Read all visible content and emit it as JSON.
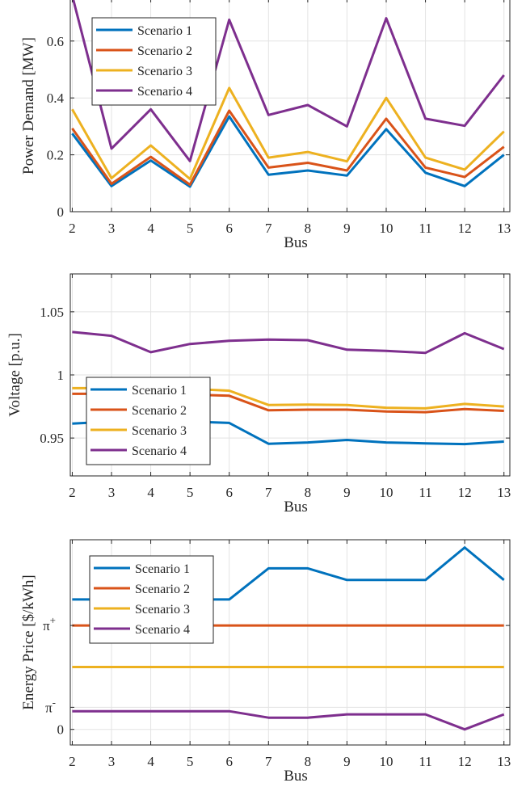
{
  "chart_data": [
    {
      "type": "line",
      "ylabel": "Power Demand [MW]",
      "xlabel": "Bus",
      "x": [
        2,
        3,
        4,
        5,
        6,
        7,
        8,
        9,
        10,
        11,
        12,
        13
      ],
      "xlim": [
        1.95,
        13.15
      ],
      "ylim": [
        0,
        0.75
      ],
      "yticks": [
        {
          "value": 0,
          "label": "0"
        },
        {
          "value": 0.2,
          "label": "0.2"
        },
        {
          "value": 0.4,
          "label": "0.4"
        },
        {
          "value": 0.6,
          "label": "0.6"
        }
      ],
      "grid": true,
      "legend_position": "top-left",
      "series": [
        {
          "name": "Scenario 1",
          "color": "#0072BD",
          "values": [
            0.275,
            0.09,
            0.18,
            0.088,
            0.335,
            0.13,
            0.145,
            0.127,
            0.29,
            0.137,
            0.09,
            0.2
          ]
        },
        {
          "name": "Scenario 2",
          "color": "#D95319",
          "values": [
            0.293,
            0.098,
            0.193,
            0.095,
            0.355,
            0.155,
            0.172,
            0.145,
            0.327,
            0.155,
            0.122,
            0.228
          ]
        },
        {
          "name": "Scenario 3",
          "color": "#EDB120",
          "values": [
            0.36,
            0.118,
            0.233,
            0.115,
            0.435,
            0.19,
            0.21,
            0.177,
            0.4,
            0.19,
            0.148,
            0.282
          ]
        },
        {
          "name": "Scenario 4",
          "color": "#7E2F8E",
          "values": [
            0.76,
            0.222,
            0.36,
            0.178,
            0.675,
            0.34,
            0.375,
            0.3,
            0.68,
            0.327,
            0.302,
            0.48
          ]
        }
      ]
    },
    {
      "type": "line",
      "ylabel": "Voltage [p.u.]",
      "xlabel": "Bus",
      "x": [
        2,
        3,
        4,
        5,
        6,
        7,
        8,
        9,
        10,
        11,
        12,
        13
      ],
      "xlim": [
        1.95,
        13.15
      ],
      "ylim": [
        0.92,
        1.08
      ],
      "yticks": [
        {
          "value": 0.95,
          "label": "0.95"
        },
        {
          "value": 1.0,
          "label": "1"
        },
        {
          "value": 1.05,
          "label": "1.05"
        }
      ],
      "grid": true,
      "legend_position": "bottom-left",
      "series": [
        {
          "name": "Scenario 1",
          "color": "#0072BD",
          "values": [
            0.9615,
            0.963,
            0.9625,
            0.963,
            0.962,
            0.9455,
            0.9465,
            0.9485,
            0.9465,
            0.9458,
            0.9452,
            0.9472
          ]
        },
        {
          "name": "Scenario 2",
          "color": "#D95319",
          "values": [
            0.985,
            0.985,
            0.984,
            0.9845,
            0.9835,
            0.972,
            0.9725,
            0.9725,
            0.971,
            0.9705,
            0.973,
            0.9715
          ]
        },
        {
          "name": "Scenario 3",
          "color": "#EDB120",
          "values": [
            0.9895,
            0.9895,
            0.9885,
            0.989,
            0.9875,
            0.9762,
            0.9765,
            0.9762,
            0.974,
            0.9735,
            0.977,
            0.975
          ]
        },
        {
          "name": "Scenario 4",
          "color": "#7E2F8E",
          "values": [
            1.034,
            1.031,
            1.018,
            1.0245,
            1.027,
            1.028,
            1.0275,
            1.02,
            1.019,
            1.0175,
            1.033,
            1.0205
          ]
        }
      ]
    },
    {
      "type": "line",
      "ylabel": "Energy Price [$/kWh]",
      "xlabel": "Bus",
      "x": [
        2,
        3,
        4,
        5,
        6,
        7,
        8,
        9,
        10,
        11,
        12,
        13
      ],
      "xlim": [
        1.95,
        13.15
      ],
      "ylim": [
        -0.6,
        7.3
      ],
      "yticks": [
        {
          "value": 0,
          "label": "0"
        },
        {
          "value": 0.85,
          "label": "π",
          "sup": "-"
        },
        {
          "value": 4.0,
          "label": "π",
          "sup": "+"
        }
      ],
      "grid": true,
      "legend_position": "top-left",
      "series": [
        {
          "name": "Scenario 1",
          "color": "#0072BD",
          "values": [
            5.0,
            5.0,
            5.0,
            5.0,
            5.0,
            6.2,
            6.2,
            5.75,
            5.75,
            5.75,
            7.0,
            5.75
          ]
        },
        {
          "name": "Scenario 2",
          "color": "#D95319",
          "values": [
            4.0,
            4.0,
            4.0,
            4.0,
            4.0,
            4.0,
            4.0,
            4.0,
            4.0,
            4.0,
            4.0,
            4.0
          ]
        },
        {
          "name": "Scenario 3",
          "color": "#EDB120",
          "values": [
            2.4,
            2.4,
            2.4,
            2.4,
            2.4,
            2.4,
            2.4,
            2.4,
            2.4,
            2.4,
            2.4,
            2.4
          ]
        },
        {
          "name": "Scenario 4",
          "color": "#7E2F8E",
          "values": [
            0.7,
            0.7,
            0.7,
            0.7,
            0.7,
            0.45,
            0.45,
            0.58,
            0.58,
            0.58,
            0.0,
            0.58
          ]
        }
      ]
    }
  ]
}
